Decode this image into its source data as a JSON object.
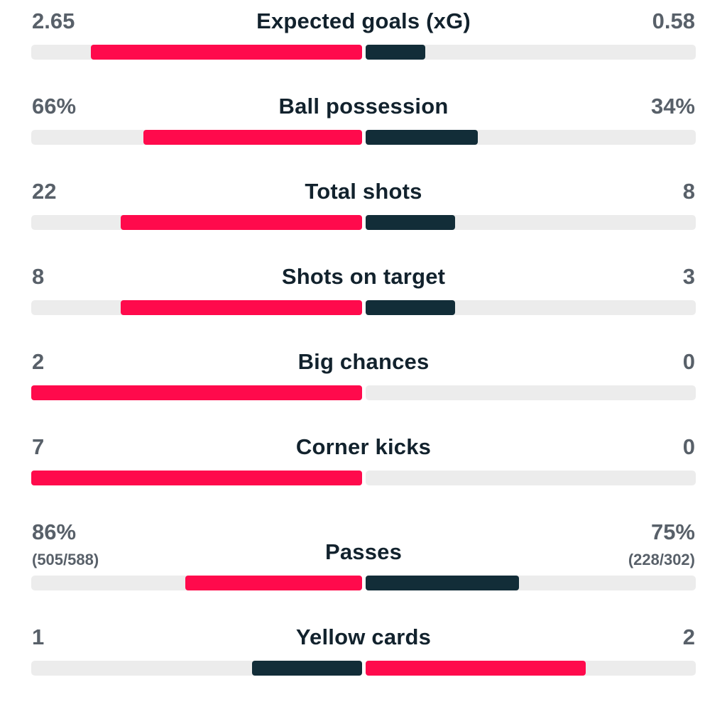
{
  "colors": {
    "leading": "#ff0a4c",
    "trailing": "#122d38",
    "track": "#ececec",
    "label": "#12222d",
    "value": "#586069"
  },
  "stats": [
    {
      "label": "Expected goals (xG)",
      "home": "2.65",
      "away": "0.58",
      "home_sub": "",
      "away_sub": "",
      "home_fill": 0.82,
      "away_fill": 0.18
    },
    {
      "label": "Ball possession",
      "home": "66%",
      "away": "34%",
      "home_sub": "",
      "away_sub": "",
      "home_fill": 0.66,
      "away_fill": 0.34
    },
    {
      "label": "Total shots",
      "home": "22",
      "away": "8",
      "home_sub": "",
      "away_sub": "",
      "home_fill": 0.73,
      "away_fill": 0.27
    },
    {
      "label": "Shots on target",
      "home": "8",
      "away": "3",
      "home_sub": "",
      "away_sub": "",
      "home_fill": 0.73,
      "away_fill": 0.27
    },
    {
      "label": "Big chances",
      "home": "2",
      "away": "0",
      "home_sub": "",
      "away_sub": "",
      "home_fill": 1.0,
      "away_fill": 0.0
    },
    {
      "label": "Corner kicks",
      "home": "7",
      "away": "0",
      "home_sub": "",
      "away_sub": "",
      "home_fill": 1.0,
      "away_fill": 0.0
    },
    {
      "label": "Passes",
      "home": "86%",
      "away": "75%",
      "home_sub": "(505/588)",
      "away_sub": "(228/302)",
      "home_fill": 0.535,
      "away_fill": 0.465
    },
    {
      "label": "Yellow cards",
      "home": "1",
      "away": "2",
      "home_sub": "",
      "away_sub": "",
      "home_fill": 0.333,
      "away_fill": 0.667
    }
  ]
}
